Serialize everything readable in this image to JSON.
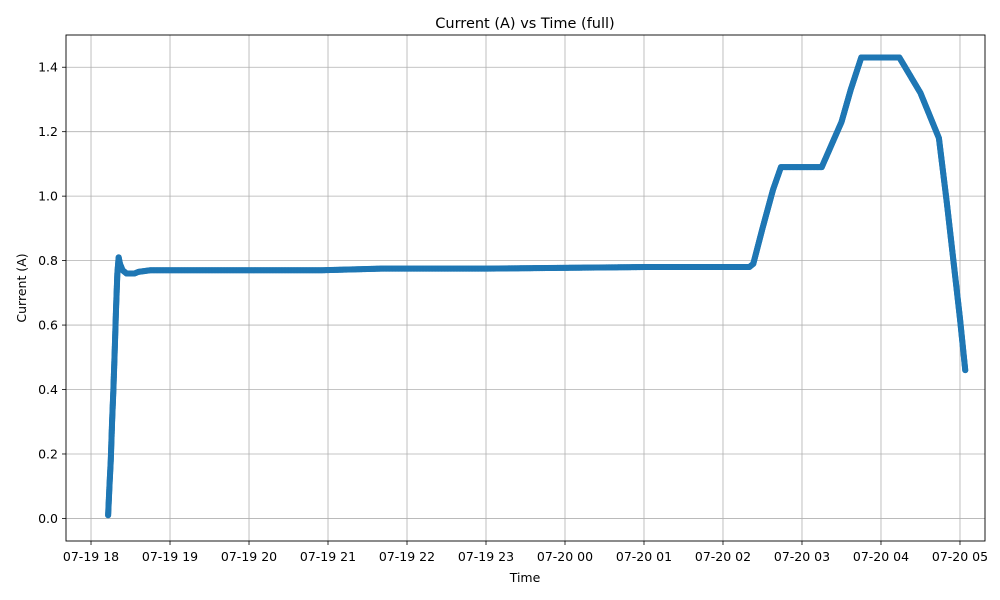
{
  "chart_data": {
    "type": "scatter",
    "title": "Current (A) vs Time (full)",
    "xlabel": "Time",
    "ylabel": "Current (A)",
    "grid": true,
    "color": "#1f77b4",
    "xlim": [
      "07-19 17:41",
      "07-20 05:19"
    ],
    "ylim": [
      -0.07,
      1.5
    ],
    "x_ticks": [
      "07-19 18",
      "07-19 19",
      "07-19 20",
      "07-19 21",
      "07-19 22",
      "07-19 23",
      "07-20 00",
      "07-20 01",
      "07-20 02",
      "07-20 03",
      "07-20 04",
      "07-20 05"
    ],
    "y_ticks": [
      "0.0",
      "0.2",
      "0.4",
      "0.6",
      "0.8",
      "1.0",
      "1.2",
      "1.4"
    ],
    "series": [
      {
        "points": [
          {
            "x": "07-19 18:13",
            "y": 0.01
          },
          {
            "x": "07-19 18:14",
            "y": 0.1
          },
          {
            "x": "07-19 18:15",
            "y": 0.18
          },
          {
            "x": "07-19 18:16",
            "y": 0.3
          },
          {
            "x": "07-19 18:17",
            "y": 0.4
          },
          {
            "x": "07-19 18:18",
            "y": 0.52
          },
          {
            "x": "07-19 18:19",
            "y": 0.65
          },
          {
            "x": "07-19 18:20",
            "y": 0.76
          },
          {
            "x": "07-19 18:21",
            "y": 0.81
          },
          {
            "x": "07-19 18:22",
            "y": 0.79
          },
          {
            "x": "07-19 18:24",
            "y": 0.77
          },
          {
            "x": "07-19 18:27",
            "y": 0.76
          },
          {
            "x": "07-19 18:33",
            "y": 0.76
          },
          {
            "x": "07-19 18:36",
            "y": 0.765
          },
          {
            "x": "07-19 18:45",
            "y": 0.77
          },
          {
            "x": "07-19 20:55",
            "y": 0.77
          },
          {
            "x": "07-19 21:40",
            "y": 0.775
          },
          {
            "x": "07-19 23:00",
            "y": 0.775
          },
          {
            "x": "07-20 01:00",
            "y": 0.78
          },
          {
            "x": "07-20 02:20",
            "y": 0.78
          },
          {
            "x": "07-20 02:23",
            "y": 0.79
          },
          {
            "x": "07-20 02:30",
            "y": 0.9
          },
          {
            "x": "07-20 02:38",
            "y": 1.02
          },
          {
            "x": "07-20 02:44",
            "y": 1.09
          },
          {
            "x": "07-20 03:00",
            "y": 1.09
          },
          {
            "x": "07-20 03:15",
            "y": 1.09
          },
          {
            "x": "07-20 03:30",
            "y": 1.23
          },
          {
            "x": "07-20 03:37",
            "y": 1.33
          },
          {
            "x": "07-20 03:45",
            "y": 1.43
          },
          {
            "x": "07-20 04:00",
            "y": 1.43
          },
          {
            "x": "07-20 04:14",
            "y": 1.43
          },
          {
            "x": "07-20 04:30",
            "y": 1.32
          },
          {
            "x": "07-20 04:44",
            "y": 1.18
          },
          {
            "x": "07-20 04:50",
            "y": 0.98
          },
          {
            "x": "07-20 04:55",
            "y": 0.8
          },
          {
            "x": "07-20 05:00",
            "y": 0.62
          },
          {
            "x": "07-20 05:04",
            "y": 0.46
          }
        ]
      }
    ]
  }
}
